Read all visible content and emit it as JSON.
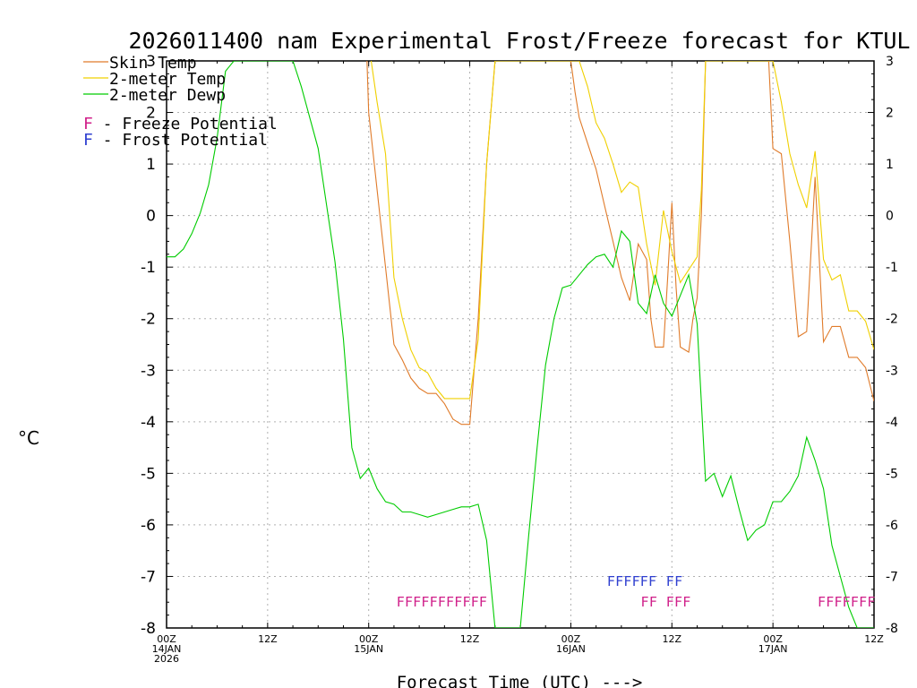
{
  "chart_data": {
    "type": "line",
    "title": "2026011400 nam Experimental Frost/Freeze forecast for KTUL",
    "ylabel": "°C",
    "xlabel": "Forecast Time (UTC) --->",
    "ylim": [
      -8,
      3
    ],
    "xlim": [
      0,
      84
    ],
    "yticks": [
      -8,
      -7,
      -6,
      -5,
      -4,
      -3,
      -2,
      -1,
      0,
      1,
      2,
      3
    ],
    "xticks": [
      {
        "h": 0,
        "l1": "00Z",
        "l2": "14JAN",
        "l3": "2026"
      },
      {
        "h": 12,
        "l1": "12Z",
        "l2": "",
        "l3": ""
      },
      {
        "h": 24,
        "l1": "00Z",
        "l2": "15JAN",
        "l3": ""
      },
      {
        "h": 36,
        "l1": "12Z",
        "l2": "",
        "l3": ""
      },
      {
        "h": 48,
        "l1": "00Z",
        "l2": "16JAN",
        "l3": ""
      },
      {
        "h": 60,
        "l1": "12Z",
        "l2": "",
        "l3": ""
      },
      {
        "h": 72,
        "l1": "00Z",
        "l2": "17JAN",
        "l3": ""
      },
      {
        "h": 84,
        "l1": "12Z",
        "l2": "",
        "l3": ""
      }
    ],
    "series": [
      {
        "name": "Skin Temp",
        "color": "#e07b2a",
        "x": [
          23.8,
          24,
          25,
          26,
          27,
          28,
          29,
          30,
          31,
          32,
          33,
          34,
          35,
          35.5,
          36,
          37,
          38,
          39,
          40,
          40.5,
          41,
          48,
          48.5,
          49,
          50,
          51,
          52,
          53,
          54,
          55,
          56,
          57,
          57.5,
          58,
          59,
          59.5,
          60,
          60.5,
          61,
          62,
          62.5,
          63,
          63.5,
          64,
          71.5,
          72,
          73,
          74,
          75,
          75.5,
          76,
          77,
          78,
          79,
          80,
          81,
          82,
          83,
          84
        ],
        "y": [
          3,
          2.0,
          0.5,
          -1,
          -2.5,
          -2.8,
          -3.15,
          -3.35,
          -3.45,
          -3.45,
          -3.65,
          -3.95,
          -4.05,
          -4.05,
          -4.05,
          -2.0,
          1.0,
          3,
          3,
          3,
          3,
          3,
          2.4,
          1.9,
          1.4,
          0.9,
          0.2,
          -0.5,
          -1.2,
          -1.65,
          -0.55,
          -0.85,
          -2.0,
          -2.55,
          -2.55,
          -1.2,
          0.25,
          -1.4,
          -2.55,
          -2.65,
          -2.0,
          -1.6,
          0.0,
          3,
          3,
          1.3,
          1.2,
          -0.5,
          -2.35,
          -2.3,
          -2.25,
          0.75,
          -2.45,
          -2.15,
          -2.15,
          -2.75,
          -2.75,
          -2.95,
          -3.6
        ]
      },
      {
        "name": "2-meter Temp",
        "color": "#f0d000",
        "x": [
          24.3,
          25,
          26,
          27,
          28,
          29,
          30,
          31,
          32,
          33,
          34,
          35,
          35.5,
          36,
          37,
          38,
          39,
          40,
          41,
          49,
          50,
          51,
          52,
          53,
          54,
          55,
          56,
          57,
          58,
          59,
          60,
          61,
          62,
          63,
          63.5,
          64,
          72,
          73,
          74,
          75,
          76,
          77,
          78,
          79,
          80,
          81,
          82,
          83,
          84
        ],
        "y": [
          3,
          2.2,
          1.2,
          -1.2,
          -2.0,
          -2.6,
          -2.95,
          -3.05,
          -3.35,
          -3.55,
          -3.55,
          -3.55,
          -3.55,
          -3.55,
          -2.4,
          1.0,
          3,
          3,
          3,
          3,
          2.5,
          1.8,
          1.5,
          1.0,
          0.45,
          0.65,
          0.55,
          -0.55,
          -1.35,
          0.1,
          -0.7,
          -1.3,
          -1.05,
          -0.8,
          0.5,
          3,
          3,
          2.2,
          1.2,
          0.6,
          0.15,
          1.25,
          -0.85,
          -1.25,
          -1.15,
          -1.85,
          -1.85,
          -2.05,
          -2.6
        ]
      },
      {
        "name": "2-meter Dewp",
        "color": "#00cc00",
        "x": [
          0,
          1,
          2,
          3,
          4,
          5,
          6,
          7,
          8,
          9,
          10,
          11,
          12,
          13,
          14,
          15,
          16,
          17,
          18,
          19,
          20,
          21,
          22,
          23,
          24,
          25,
          26,
          27,
          28,
          29,
          30,
          31,
          32,
          33,
          34,
          35,
          36,
          37,
          38,
          39,
          40,
          41,
          42,
          43,
          44,
          45,
          46,
          47,
          48,
          49,
          50,
          51,
          52,
          53,
          54,
          55,
          56,
          57,
          58,
          59,
          60,
          61,
          62,
          63,
          64,
          65,
          66,
          67,
          68,
          69,
          70,
          71,
          72,
          73,
          74,
          75,
          76,
          77,
          78,
          79,
          80,
          81,
          82,
          83,
          84
        ],
        "y": [
          -0.8,
          -0.8,
          -0.65,
          -0.35,
          0.05,
          0.6,
          1.5,
          2.8,
          3,
          3,
          3,
          3,
          3,
          3,
          3,
          3,
          2.5,
          1.9,
          1.3,
          0.2,
          -0.9,
          -2.4,
          -4.5,
          -5.1,
          -4.9,
          -5.3,
          -5.55,
          -5.6,
          -5.75,
          -5.75,
          -5.8,
          -5.85,
          -5.8,
          -5.75,
          -5.7,
          -5.65,
          -5.65,
          -5.6,
          -6.3,
          -8,
          -8,
          -8,
          -8,
          -6.2,
          -4.5,
          -2.9,
          -2.0,
          -1.4,
          -1.35,
          -1.15,
          -0.95,
          -0.8,
          -0.75,
          -1.0,
          -0.3,
          -0.5,
          -1.7,
          -1.9,
          -1.15,
          -1.7,
          -1.95,
          -1.55,
          -1.15,
          -2.1,
          -5.15,
          -5.0,
          -5.45,
          -5.05,
          -5.7,
          -6.3,
          -6.1,
          -6.0,
          -5.55,
          -5.55,
          -5.35,
          -5.05,
          -4.3,
          -4.75,
          -5.3,
          -6.4,
          -7.0,
          -7.6,
          -8,
          -8,
          -8
        ]
      }
    ],
    "potential_markers": [
      {
        "kind": "Freeze",
        "color": "#d0208a",
        "row_value": -7.5,
        "text": "FFFFFFFFFFF",
        "start_hour": 27.3
      },
      {
        "kind": "Frost",
        "color": "#3040d0",
        "row_value": -7.1,
        "text": "FFFFFF",
        "start_hour": 52.3
      },
      {
        "kind": "Frost",
        "color": "#3040d0",
        "row_value": -7.1,
        "text": "FF",
        "start_hour": 59.3
      },
      {
        "kind": "Freeze",
        "color": "#d0208a",
        "row_value": -7.5,
        "text": "FF",
        "start_hour": 56.3
      },
      {
        "kind": "Freeze",
        "color": "#d0208a",
        "row_value": -7.5,
        "text": "FFF",
        "start_hour": 59.3
      },
      {
        "kind": "Freeze",
        "color": "#d0208a",
        "row_value": -7.5,
        "text": "FFFFFFF",
        "start_hour": 77.3
      }
    ],
    "legend": {
      "series_labels": [
        "Skin Temp",
        "2-meter Temp",
        "2-meter Dewp"
      ],
      "potential": [
        {
          "letter": "F",
          "color": "#d0208a",
          "label": " - Freeze Potential"
        },
        {
          "letter": "F",
          "color": "#3040d0",
          "label": " - Frost Potential"
        }
      ]
    }
  }
}
